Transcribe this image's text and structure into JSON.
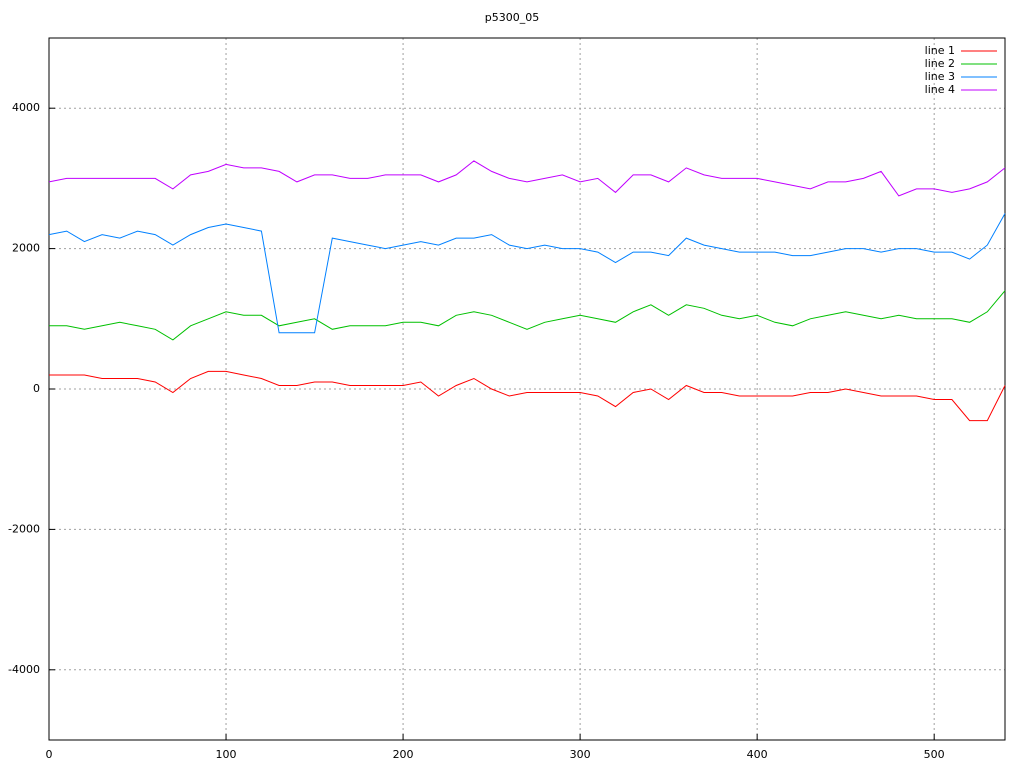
{
  "chart_data": {
    "type": "line",
    "title": "p5300_05",
    "x": [
      0,
      10,
      20,
      30,
      40,
      50,
      60,
      70,
      80,
      90,
      100,
      110,
      120,
      130,
      140,
      150,
      160,
      170,
      180,
      190,
      200,
      210,
      220,
      230,
      240,
      250,
      260,
      270,
      280,
      290,
      300,
      310,
      320,
      330,
      340,
      350,
      360,
      370,
      380,
      390,
      400,
      410,
      420,
      430,
      440,
      450,
      460,
      470,
      480,
      490,
      500,
      510,
      520,
      530,
      540
    ],
    "series": [
      {
        "name": "line 1",
        "color": "#ff0000",
        "values": [
          200,
          200,
          200,
          150,
          150,
          150,
          100,
          -50,
          150,
          250,
          250,
          200,
          150,
          50,
          50,
          100,
          100,
          50,
          50,
          50,
          50,
          100,
          -100,
          50,
          150,
          0,
          -100,
          -50,
          -50,
          -50,
          -50,
          -100,
          -250,
          -50,
          0,
          -150,
          50,
          -50,
          -50,
          -100,
          -100,
          -100,
          -100,
          -50,
          -50,
          0,
          -50,
          -100,
          -100,
          -100,
          -150,
          -150,
          -450,
          -450,
          50
        ]
      },
      {
        "name": "line 2",
        "color": "#00c000",
        "values": [
          900,
          900,
          850,
          900,
          950,
          900,
          850,
          700,
          900,
          1000,
          1100,
          1050,
          1050,
          900,
          950,
          1000,
          850,
          900,
          900,
          900,
          950,
          950,
          900,
          1050,
          1100,
          1050,
          950,
          850,
          950,
          1000,
          1050,
          1000,
          950,
          1100,
          1200,
          1050,
          1200,
          1150,
          1050,
          1000,
          1050,
          950,
          900,
          1000,
          1050,
          1100,
          1050,
          1000,
          1050,
          1000,
          1000,
          1000,
          950,
          1100,
          1400
        ]
      },
      {
        "name": "line 3",
        "color": "#0080ff",
        "values": [
          2200,
          2250,
          2100,
          2200,
          2150,
          2250,
          2200,
          2050,
          2200,
          2300,
          2350,
          2300,
          2250,
          800,
          800,
          800,
          2150,
          2100,
          2050,
          2000,
          2050,
          2100,
          2050,
          2150,
          2150,
          2200,
          2050,
          2000,
          2050,
          2000,
          2000,
          1950,
          1800,
          1950,
          1950,
          1900,
          2150,
          2050,
          2000,
          1950,
          1950,
          1950,
          1900,
          1900,
          1950,
          2000,
          2000,
          1950,
          2000,
          2000,
          1950,
          1950,
          1850,
          2050,
          2500
        ]
      },
      {
        "name": "line 4",
        "color": "#c000ff",
        "values": [
          2950,
          3000,
          3000,
          3000,
          3000,
          3000,
          3000,
          2850,
          3050,
          3100,
          3200,
          3150,
          3150,
          3100,
          2950,
          3050,
          3050,
          3000,
          3000,
          3050,
          3050,
          3050,
          2950,
          3050,
          3250,
          3100,
          3000,
          2950,
          3000,
          3050,
          2950,
          3000,
          2800,
          3050,
          3050,
          2950,
          3150,
          3050,
          3000,
          3000,
          3000,
          2950,
          2900,
          2850,
          2950,
          2950,
          3000,
          3100,
          2750,
          2850,
          2850,
          2800,
          2850,
          2950,
          3150
        ]
      }
    ],
    "xlim": [
      0,
      540
    ],
    "xticks": [
      0,
      100,
      200,
      300,
      400,
      500
    ],
    "ylim": [
      -5000,
      5000
    ],
    "yticks": [
      -4000,
      -2000,
      0,
      2000,
      4000
    ],
    "grid": true,
    "legend_position": "top-right"
  }
}
